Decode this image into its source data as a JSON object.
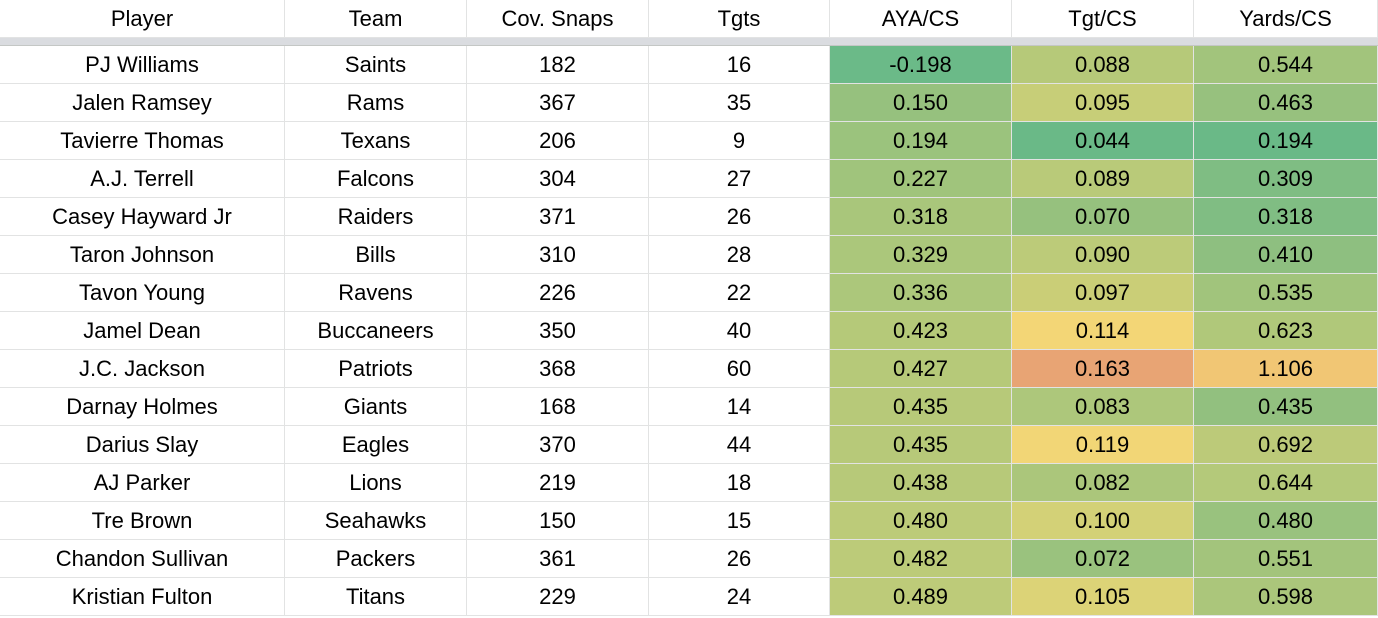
{
  "columns": [
    "Player",
    "Team",
    "Cov. Snaps",
    "Tgts",
    "AYA/CS",
    "Tgt/CS",
    "Yards/CS"
  ],
  "rows": [
    {
      "cells": [
        "PJ Williams",
        "Saints",
        "182",
        "16",
        "-0.198",
        "0.088",
        "0.544"
      ],
      "colors": [
        "#6bba88",
        "#b6c979",
        "#a2c47c"
      ]
    },
    {
      "cells": [
        "Jalen Ramsey",
        "Rams",
        "367",
        "35",
        "0.150",
        "0.095",
        "0.463"
      ],
      "colors": [
        "#96c17e",
        "#c7ce78",
        "#97c17e"
      ]
    },
    {
      "cells": [
        "Tavierre Thomas",
        "Texans",
        "206",
        "9",
        "0.194",
        "0.044",
        "0.194"
      ],
      "colors": [
        "#9bc37d",
        "#6ab987",
        "#6ab987"
      ]
    },
    {
      "cells": [
        "A.J. Terrell",
        "Falcons",
        "304",
        "27",
        "0.227",
        "0.089",
        "0.309"
      ],
      "colors": [
        "#a0c47c",
        "#b9ca79",
        "#7fbd83"
      ]
    },
    {
      "cells": [
        "Casey Hayward Jr",
        "Raiders",
        "371",
        "26",
        "0.318",
        "0.070",
        "0.318"
      ],
      "colors": [
        "#a9c67b",
        "#96c17e",
        "#80bd83"
      ]
    },
    {
      "cells": [
        "Taron Johnson",
        "Bills",
        "310",
        "28",
        "0.329",
        "0.090",
        "0.410"
      ],
      "colors": [
        "#abc77b",
        "#bccb79",
        "#8ebf80"
      ]
    },
    {
      "cells": [
        "Tavon Young",
        "Ravens",
        "226",
        "22",
        "0.336",
        "0.097",
        "0.535"
      ],
      "colors": [
        "#acc77b",
        "#cace77",
        "#a1c47c"
      ]
    },
    {
      "cells": [
        "Jamel Dean",
        "Buccaneers",
        "350",
        "40",
        "0.423",
        "0.114",
        "0.623"
      ],
      "colors": [
        "#b5c979",
        "#f3d676",
        "#b0c87a"
      ]
    },
    {
      "cells": [
        "J.C. Jackson",
        "Patriots",
        "368",
        "60",
        "0.427",
        "0.163",
        "1.106"
      ],
      "colors": [
        "#b6c979",
        "#e8a474",
        "#f1c674"
      ]
    },
    {
      "cells": [
        "Darnay Holmes",
        "Giants",
        "168",
        "14",
        "0.435",
        "0.083",
        "0.435"
      ],
      "colors": [
        "#b7c979",
        "#adc77b",
        "#92c07f"
      ]
    },
    {
      "cells": [
        "Darius Slay",
        "Eagles",
        "370",
        "44",
        "0.435",
        "0.119",
        "0.692"
      ],
      "colors": [
        "#b7c979",
        "#f2d676",
        "#bcca79"
      ]
    },
    {
      "cells": [
        "AJ Parker",
        "Lions",
        "219",
        "18",
        "0.438",
        "0.082",
        "0.644"
      ],
      "colors": [
        "#b7c979",
        "#abc67b",
        "#b4c97a"
      ]
    },
    {
      "cells": [
        "Tre Brown",
        "Seahawks",
        "150",
        "15",
        "0.480",
        "0.100",
        "0.480"
      ],
      "colors": [
        "#bccb79",
        "#d3d177",
        "#99c27e"
      ]
    },
    {
      "cells": [
        "Chandon Sullivan",
        "Packers",
        "361",
        "26",
        "0.482",
        "0.072",
        "0.551"
      ],
      "colors": [
        "#bccb79",
        "#9ac27e",
        "#a3c47c"
      ]
    },
    {
      "cells": [
        "Kristian Fulton",
        "Titans",
        "229",
        "24",
        "0.489",
        "0.105",
        "0.598"
      ],
      "colors": [
        "#bdcb79",
        "#dcd377",
        "#abc67b"
      ]
    }
  ]
}
